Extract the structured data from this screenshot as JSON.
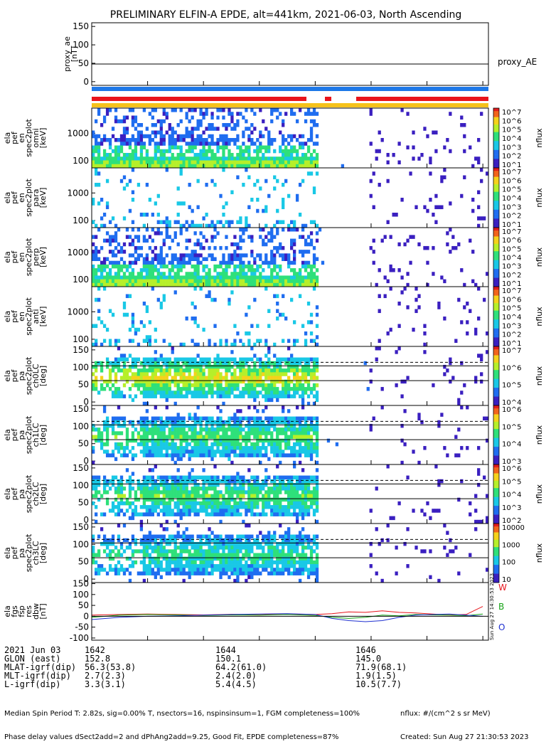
{
  "title": "PRELIMINARY ELFIN-A EPDE, alt=441km, 2021-06-03, North Ascending",
  "colors": {
    "spectro_low": "#2a0d6b",
    "red_bar": "#e8141b",
    "blue_bar": "#1e78e8",
    "yellow_bar": "#f6c21b",
    "W": "#e8141b",
    "B": "#17a317",
    "O": "#1e2fd0"
  },
  "chart_data": [
    {
      "type": "line",
      "ylabel": "proxy_ae\n[nT]",
      "yticks": [
        "150",
        "100",
        "50",
        "0"
      ],
      "ylim": [
        -10,
        160
      ],
      "series": [
        {
          "name": "proxy_AE",
          "x": [
            1641.0,
            1648.1
          ],
          "y": [
            48,
            48
          ]
        }
      ]
    },
    {
      "type": "heatmap",
      "ylabel": "ela\npef\nen\nspec2plot\nomni\n[keV]",
      "yticks": [
        "1000",
        "100"
      ],
      "colorbar": {
        "label": "nflux",
        "ticks": [
          "10^7",
          "10^6",
          "10^5",
          "10^4",
          "10^3",
          "10^2",
          "10^1"
        ]
      }
    },
    {
      "type": "heatmap",
      "ylabel": "ela\npef\nen\nspec2plot\npara\n[keV]",
      "yticks": [
        "1000",
        "100"
      ],
      "colorbar": {
        "label": "nflux",
        "ticks": [
          "10^7",
          "10^6",
          "10^5",
          "10^4",
          "10^3",
          "10^2",
          "10^1"
        ]
      }
    },
    {
      "type": "heatmap",
      "ylabel": "ela\npef\nen\nspec2plot\nperp\n[keV]",
      "yticks": [
        "1000",
        "100"
      ],
      "colorbar": {
        "label": "nflux",
        "ticks": [
          "10^7",
          "10^6",
          "10^5",
          "10^4",
          "10^3",
          "10^2",
          "10^1"
        ]
      }
    },
    {
      "type": "heatmap",
      "ylabel": "ela\npef\nen\nspec2plot\nanti\n[keV]",
      "yticks": [
        "1000",
        "100"
      ],
      "colorbar": {
        "label": "nflux",
        "ticks": [
          "10^7",
          "10^6",
          "10^5",
          "10^4",
          "10^3",
          "10^2",
          "10^1"
        ]
      }
    },
    {
      "type": "heatmap",
      "ylabel": "ela\npef\npa\nspec2plot\nch0LC\n[deg]",
      "yticks": [
        "150",
        "100",
        "50",
        "0"
      ],
      "colorbar": {
        "label": "nflux",
        "ticks": [
          "10^7",
          "10^6",
          "10^5",
          "10^4"
        ]
      }
    },
    {
      "type": "heatmap",
      "ylabel": "ela\npef\npa\nspec2plot\nch1LC\n[deg]",
      "yticks": [
        "150",
        "100",
        "50",
        "0"
      ],
      "colorbar": {
        "label": "nflux",
        "ticks": [
          "10^6",
          "10^5",
          "10^4",
          "10^3"
        ]
      }
    },
    {
      "type": "heatmap",
      "ylabel": "ela\npef\npa\nspec2plot\nch2LC\n[deg]",
      "yticks": [
        "150",
        "100",
        "50",
        "0"
      ],
      "colorbar": {
        "label": "nflux",
        "ticks": [
          "10^6",
          "10^5",
          "10^4",
          "10^3",
          "10^2"
        ]
      }
    },
    {
      "type": "heatmap",
      "ylabel": "ela\npef\npa\nspec2plot\nch3LC\n[deg]",
      "yticks": [
        "150",
        "100",
        "50",
        "0"
      ],
      "colorbar": {
        "label": "nflux",
        "ticks": [
          "10000",
          "1000",
          "100",
          "10"
        ]
      }
    },
    {
      "type": "line",
      "ylabel": "ela\nfgs\nfsp\nres\ndbw\n[nT]",
      "yticks": [
        "150",
        "100",
        "50",
        "0",
        "-50",
        "-100"
      ],
      "ylim": [
        -110,
        155
      ],
      "legend": [
        "W",
        "B",
        "O"
      ],
      "series": [
        {
          "name": "W",
          "x": [
            1641.0,
            1641.5,
            1642.0,
            1642.5,
            1643.0,
            1643.5,
            1644.0,
            1644.5,
            1645.0,
            1645.3,
            1645.6,
            1645.9,
            1646.2,
            1646.5,
            1646.8,
            1647.1,
            1647.4,
            1647.7,
            1648.0
          ],
          "y": [
            5,
            8,
            10,
            8,
            6,
            9,
            7,
            10,
            8,
            12,
            20,
            18,
            25,
            18,
            15,
            10,
            6,
            8,
            45
          ]
        },
        {
          "name": "B",
          "x": [
            1641.0,
            1641.5,
            1642.0,
            1642.5,
            1643.0,
            1643.5,
            1644.0,
            1644.5,
            1645.0,
            1645.3,
            1645.6,
            1645.9,
            1646.2,
            1646.5,
            1646.8,
            1647.1,
            1647.4,
            1647.7,
            1648.0
          ],
          "y": [
            -5,
            5,
            8,
            6,
            4,
            6,
            5,
            8,
            4,
            -5,
            -10,
            -5,
            5,
            2,
            8,
            6,
            5,
            3,
            10
          ]
        },
        {
          "name": "O",
          "x": [
            1641.0,
            1641.5,
            1642.0,
            1642.5,
            1643.0,
            1643.5,
            1644.0,
            1644.5,
            1645.0,
            1645.3,
            1645.6,
            1645.9,
            1646.2,
            1646.5,
            1646.8,
            1647.1,
            1647.4,
            1647.7,
            1648.0
          ],
          "y": [
            -15,
            -5,
            0,
            2,
            5,
            8,
            10,
            12,
            8,
            -10,
            -20,
            -25,
            -20,
            -5,
            5,
            8,
            10,
            5,
            0
          ]
        }
      ]
    }
  ],
  "timestamp_vertical": "Sun Aug 27 14:30:53 2023",
  "footer": {
    "rows": [
      {
        "label": "2021 Jun 03",
        "v1": "1642",
        "v2": "1644",
        "v3": "1646"
      },
      {
        "label": "GLON (east)",
        "v1": "152.8",
        "v2": "150.1",
        "v3": "145.0"
      },
      {
        "label": "MLAT-igrf(dip)",
        "v1": "56.3(53.8)",
        "v2": "64.2(61.0)",
        "v3": "71.9(68.1)"
      },
      {
        "label": "MLT-igrf(dip)",
        "v1": "2.7(2.3)",
        "v2": "2.4(2.0)",
        "v3": "1.9(1.5)"
      },
      {
        "label": "L-igrf(dip)",
        "v1": "3.3(3.1)",
        "v2": "5.4(4.5)",
        "v3": "10.5(7.7)"
      }
    ],
    "note1": "Median Spin Period T: 2.82s, sig=0.00% T, nsectors=16, nspinsinsum=1, FGM completeness=100%",
    "note2": "Phase delay values dSect2add=2 and dPhAng2add=9.25, Good Fit, EPDE completeness=87%",
    "note_right1": "nflux: #/(cm^2 s sr MeV)",
    "note_right2": "Created: Sun Aug 27 21:30:53 2023"
  }
}
